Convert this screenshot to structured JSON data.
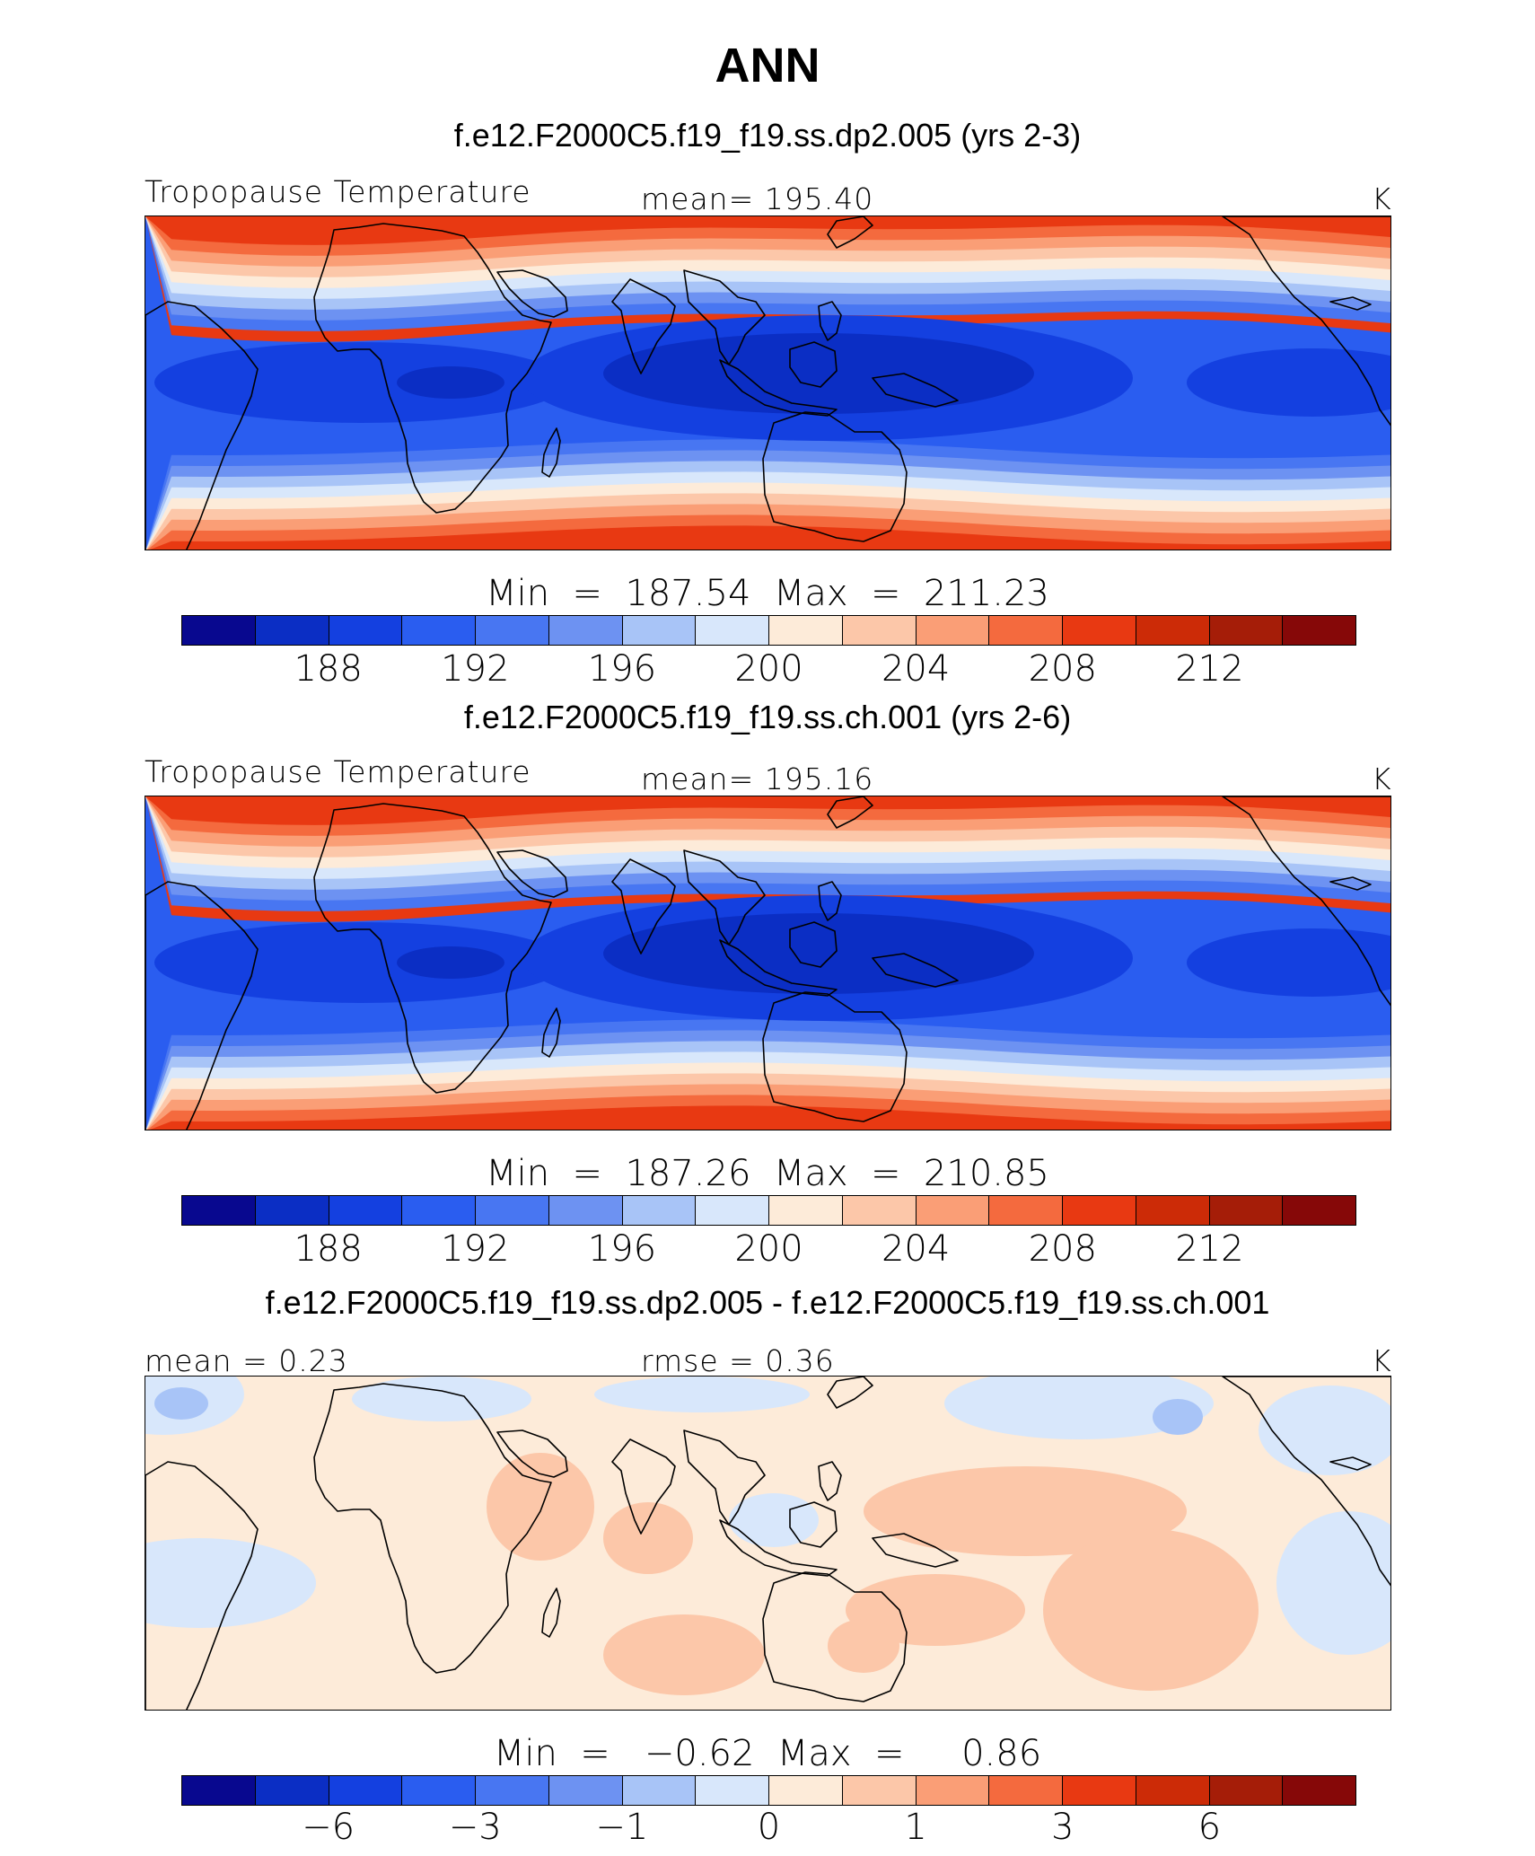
{
  "page": {
    "title": "ANN"
  },
  "colors": {
    "scale": [
      "#08088f",
      "#0b2ec4",
      "#1440e0",
      "#2a5df0",
      "#4876f2",
      "#6d92f2",
      "#a8c4f7",
      "#d8e7fb",
      "#fdebd9",
      "#fcc7a9",
      "#fa9e76",
      "#f46a3e",
      "#e83912",
      "#cc2b07",
      "#a51d08",
      "#860808"
    ]
  },
  "panels": [
    {
      "case_title": "f.e12.F2000C5.f19_f19.ss.dp2.005 (yrs 2-3)",
      "left_label": "Tropopause Temperature",
      "center_label": "mean=  195.40",
      "right_label": "K",
      "minmax": "Min  =  187.54  Max  =  211.23",
      "tick_labels": [
        "188",
        "192",
        "196",
        "200",
        "204",
        "208",
        "212"
      ],
      "field": {
        "kind": "absolute",
        "range": [
          187.54,
          211.23
        ],
        "mean": 195.4
      }
    },
    {
      "case_title": "f.e12.F2000C5.f19_f19.ss.ch.001 (yrs 2-6)",
      "left_label": "Tropopause Temperature",
      "center_label": "mean=  195.16",
      "right_label": "K",
      "minmax": "Min  =  187.26  Max  =  210.85",
      "tick_labels": [
        "188",
        "192",
        "196",
        "200",
        "204",
        "208",
        "212"
      ],
      "field": {
        "kind": "absolute",
        "range": [
          187.26,
          210.85
        ],
        "mean": 195.16
      }
    },
    {
      "case_title": "f.e12.F2000C5.f19_f19.ss.dp2.005 - f.e12.F2000C5.f19_f19.ss.ch.001",
      "left_label": "mean =    0.23",
      "center_label": "rmse =    0.36",
      "right_label": "K",
      "minmax": "Min  =   −0.62  Max  =     0.86",
      "tick_labels": [
        "−6",
        "−3",
        "−1",
        "0",
        "1",
        "3",
        "6"
      ],
      "field": {
        "kind": "difference",
        "range": [
          -0.62,
          0.86
        ],
        "mean": 0.23,
        "rmse": 0.36
      }
    }
  ]
}
